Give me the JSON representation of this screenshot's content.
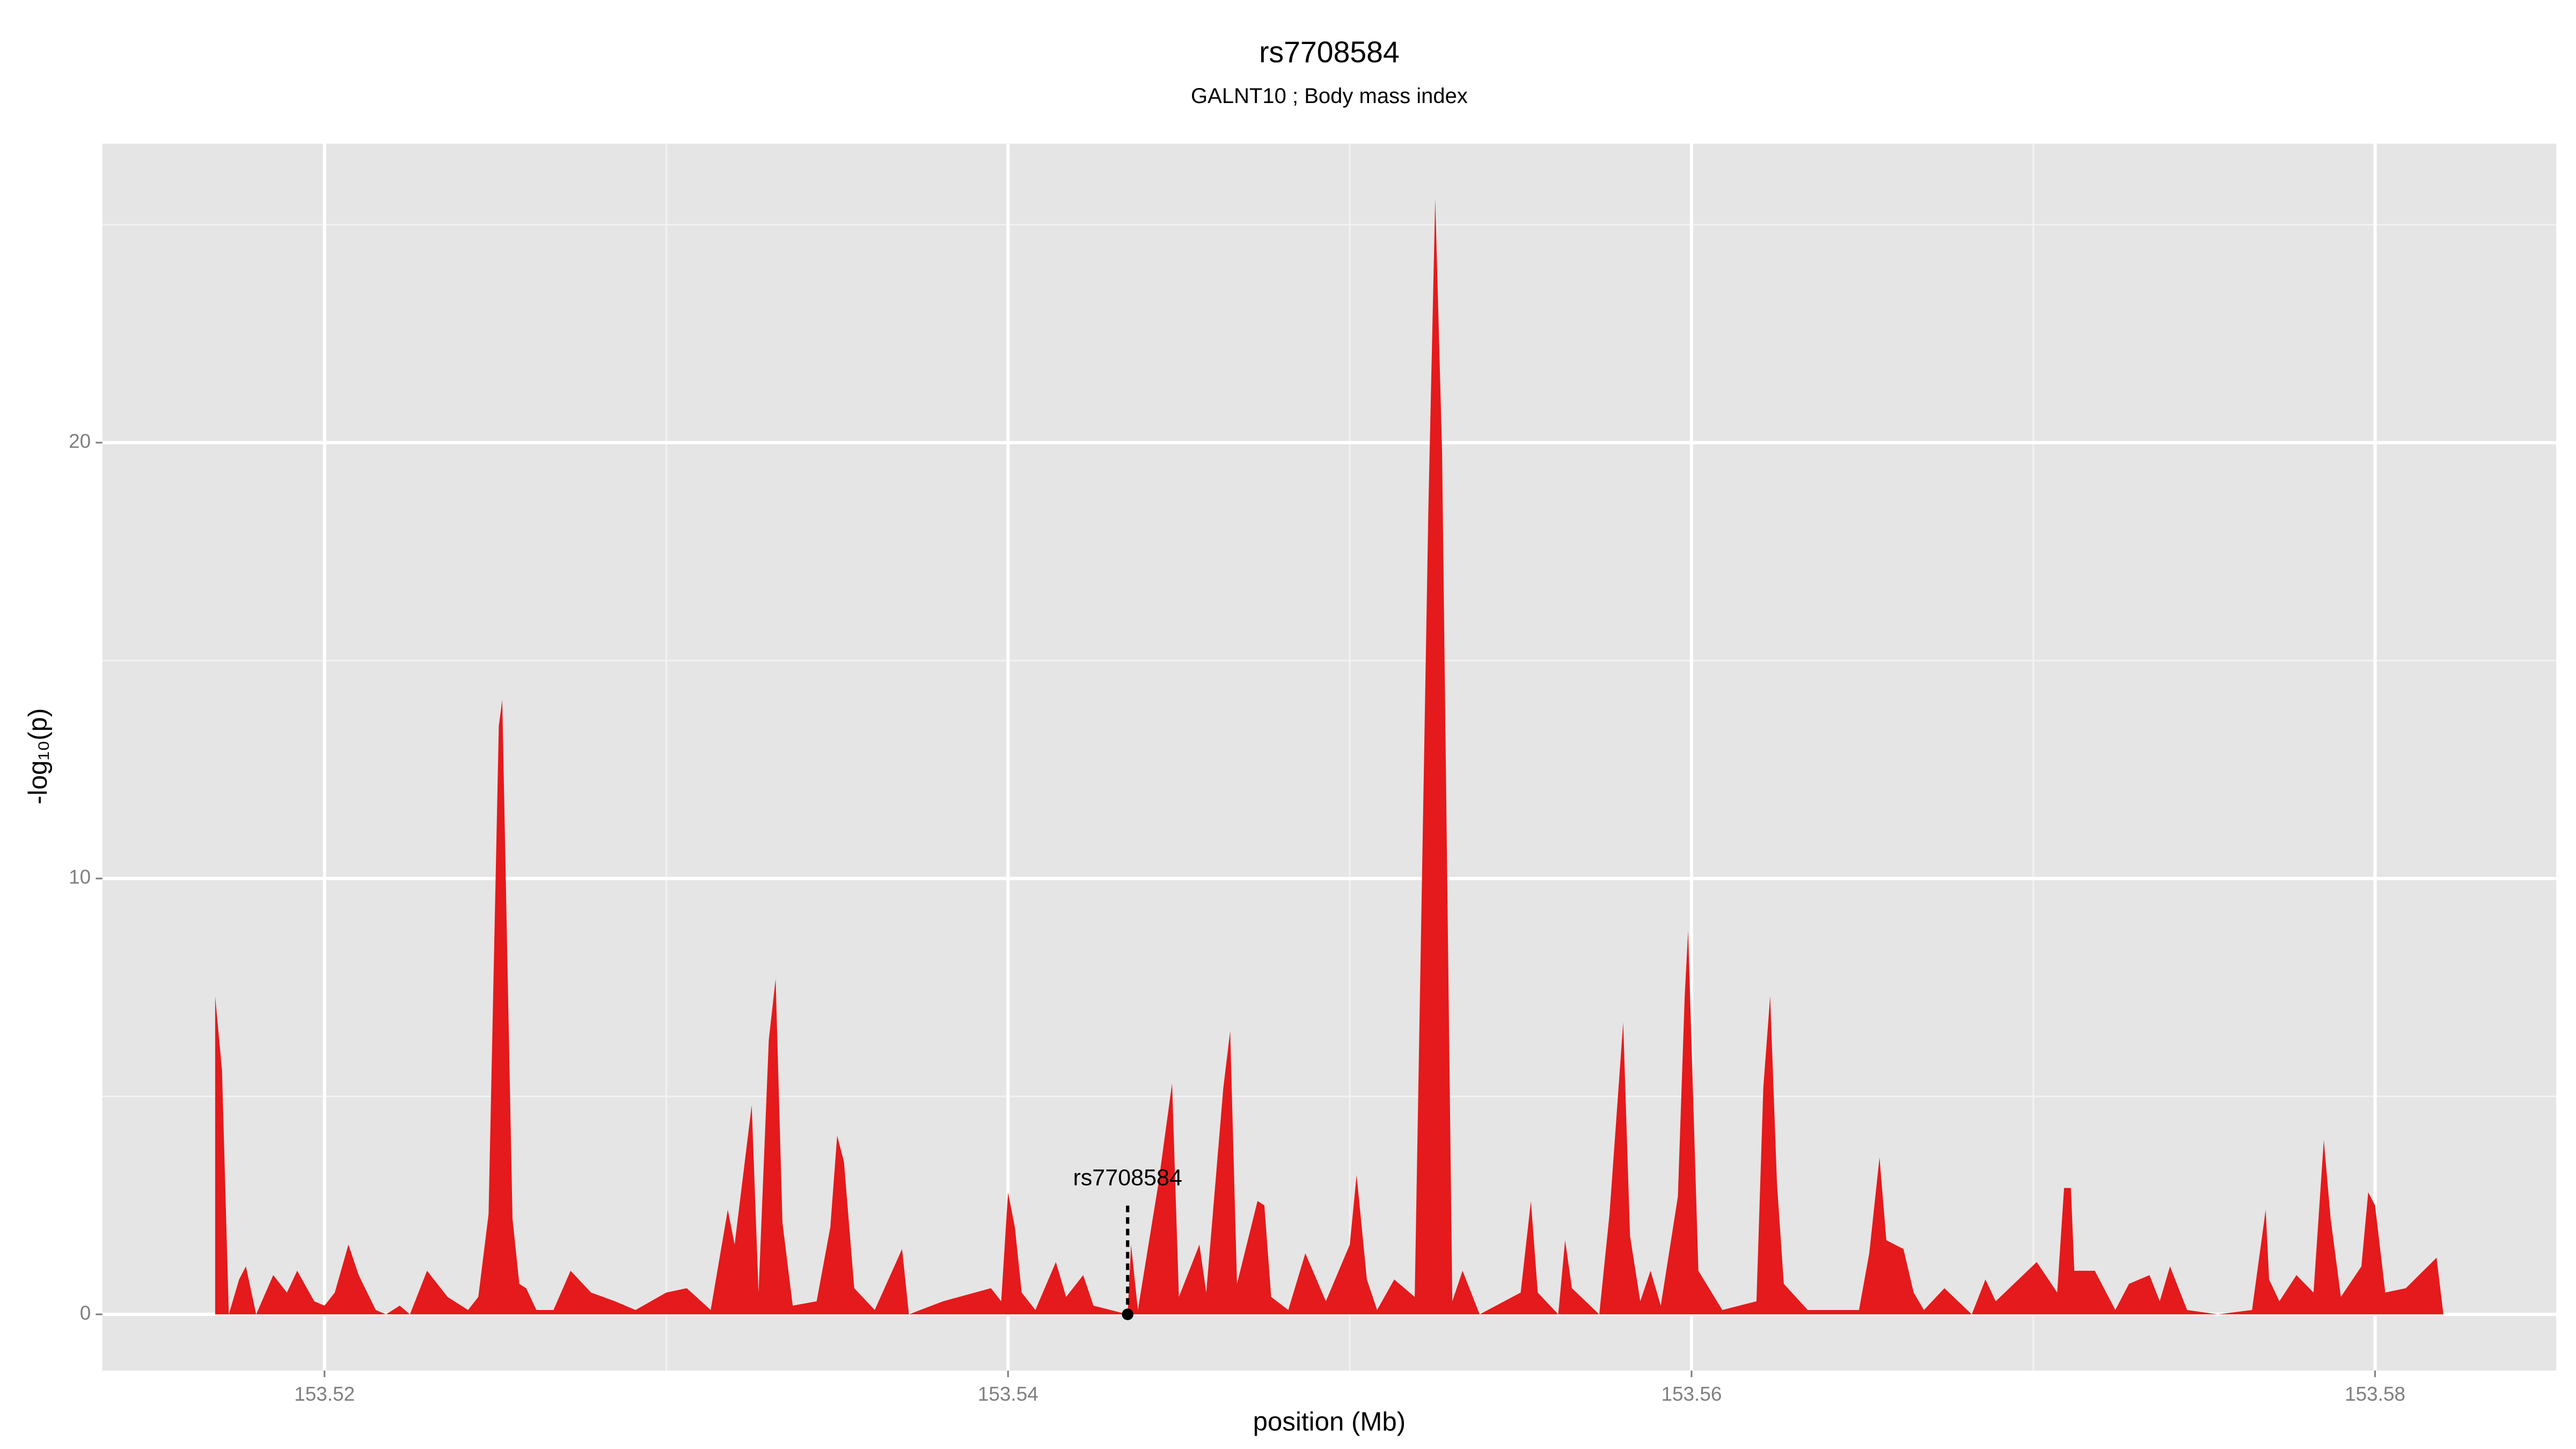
{
  "chart_data": {
    "type": "area",
    "title": "rs7708584",
    "subtitle": "GALNT10 ; Body mass index",
    "x_label": "position (Mb)",
    "y_label": "-log₁₀(p)",
    "xlim": [
      153.5135,
      153.5853
    ],
    "ylim": [
      -1.29,
      26.86
    ],
    "xticks": [
      153.52,
      153.54,
      153.56,
      153.58
    ],
    "xminor": [
      153.53,
      153.55,
      153.57
    ],
    "yticks": [
      0,
      10,
      20
    ],
    "yminor": [
      5,
      15,
      25
    ],
    "grid": true,
    "background": "#e5e5e5",
    "series": [
      {
        "color": "#e41a1c",
        "x": [
          153.5168,
          153.517,
          153.5172,
          153.5175,
          153.5177,
          153.518,
          153.5185,
          153.5189,
          153.5192,
          153.5197,
          153.52,
          153.5203,
          153.5207,
          153.521,
          153.5215,
          153.5218,
          153.5222,
          153.5225,
          153.523,
          153.5236,
          153.5242,
          153.5245,
          153.5248,
          153.5251,
          153.5252,
          153.5255,
          153.5257,
          153.5259,
          153.5262,
          153.5267,
          153.5272,
          153.5278,
          153.5285,
          153.5291,
          153.53,
          153.5306,
          153.5313,
          153.5318,
          153.532,
          153.5325,
          153.5327,
          153.533,
          153.5332,
          153.5334,
          153.5337,
          153.5344,
          153.5348,
          153.535,
          153.5352,
          153.5355,
          153.5361,
          153.5369,
          153.5371,
          153.5381,
          153.5395,
          153.5398,
          153.54,
          153.5402,
          153.5404,
          153.5408,
          153.5414,
          153.5417,
          153.5422,
          153.5425,
          153.5435,
          153.5436,
          153.5438,
          153.5444,
          153.5448,
          153.545,
          153.5456,
          153.5458,
          153.5463,
          153.5465,
          153.5467,
          153.5473,
          153.5475,
          153.5477,
          153.5482,
          153.5487,
          153.5493,
          153.55,
          153.5502,
          153.5505,
          153.5508,
          153.5513,
          153.5519,
          153.5523,
          153.5525,
          153.5527,
          153.553,
          153.5533,
          153.5538,
          153.555,
          153.5553,
          153.5555,
          153.5561,
          153.5563,
          153.5565,
          153.5573,
          153.5576,
          153.558,
          153.5582,
          153.5585,
          153.5588,
          153.5591,
          153.5596,
          153.5598,
          153.5599,
          153.5602,
          153.5609,
          153.5619,
          153.5621,
          153.5623,
          153.5625,
          153.5627,
          153.5634,
          153.5649,
          153.5652,
          153.5655,
          153.5657,
          153.5662,
          153.5665,
          153.5668,
          153.5674,
          153.5682,
          153.5686,
          153.5689,
          153.5701,
          153.5707,
          153.5709,
          153.5711,
          153.5712,
          153.5718,
          153.5724,
          153.5728,
          153.5734,
          153.5737,
          153.574,
          153.5745,
          153.5754,
          153.5764,
          153.5768,
          153.5769,
          153.5772,
          153.5777,
          153.5782,
          153.5785,
          153.5787,
          153.579,
          153.5796,
          153.5798,
          153.58,
          153.5803,
          153.5809,
          153.5818,
          153.582
        ],
        "values": [
          7.3,
          5.6,
          0,
          0.8,
          1.1,
          0,
          0.9,
          0.5,
          1.0,
          0.3,
          0.2,
          0.5,
          1.6,
          0.9,
          0.1,
          0,
          0.2,
          0,
          1.0,
          0.4,
          0.1,
          0.4,
          2.3,
          13.5,
          14.1,
          2.2,
          0.7,
          0.6,
          0.1,
          0.1,
          1.0,
          0.5,
          0.3,
          0.1,
          0.5,
          0.6,
          0.1,
          2.4,
          1.6,
          4.8,
          0.5,
          6.3,
          7.7,
          2.1,
          0.2,
          0.3,
          2.0,
          4.1,
          3.5,
          0.6,
          0.1,
          1.5,
          0,
          0.3,
          0.6,
          0.3,
          2.8,
          2.0,
          0.5,
          0.1,
          1.2,
          0.4,
          0.9,
          0.2,
          0,
          1.6,
          0.1,
          3.0,
          5.3,
          0.4,
          1.6,
          0.5,
          5.2,
          6.5,
          0.7,
          2.6,
          2.5,
          0.4,
          0.1,
          1.4,
          0.3,
          1.6,
          3.2,
          0.8,
          0.1,
          0.8,
          0.4,
          18.5,
          25.6,
          19.8,
          0.3,
          1.0,
          0,
          0.5,
          2.6,
          0.5,
          0,
          1.7,
          0.6,
          0,
          2.3,
          6.7,
          1.8,
          0.3,
          1.0,
          0.2,
          2.7,
          7.3,
          8.8,
          1.0,
          0.1,
          0.3,
          5.2,
          7.3,
          3.0,
          0.7,
          0.1,
          0.1,
          1.4,
          3.6,
          1.7,
          1.5,
          0.5,
          0.1,
          0.6,
          0,
          0.8,
          0.3,
          1.2,
          0.5,
          2.9,
          2.9,
          1.0,
          1.0,
          0.1,
          0.7,
          0.9,
          0.3,
          1.1,
          0.1,
          0,
          0.1,
          2.4,
          0.8,
          0.3,
          0.9,
          0.5,
          4.0,
          2.2,
          0.4,
          1.1,
          2.8,
          2.5,
          0.5,
          0.6,
          1.3,
          0
        ]
      }
    ],
    "highlight": {
      "label": "rs7708584",
      "x": 153.5435,
      "y": 0,
      "label_y": 3.1,
      "color": "#000000"
    }
  }
}
